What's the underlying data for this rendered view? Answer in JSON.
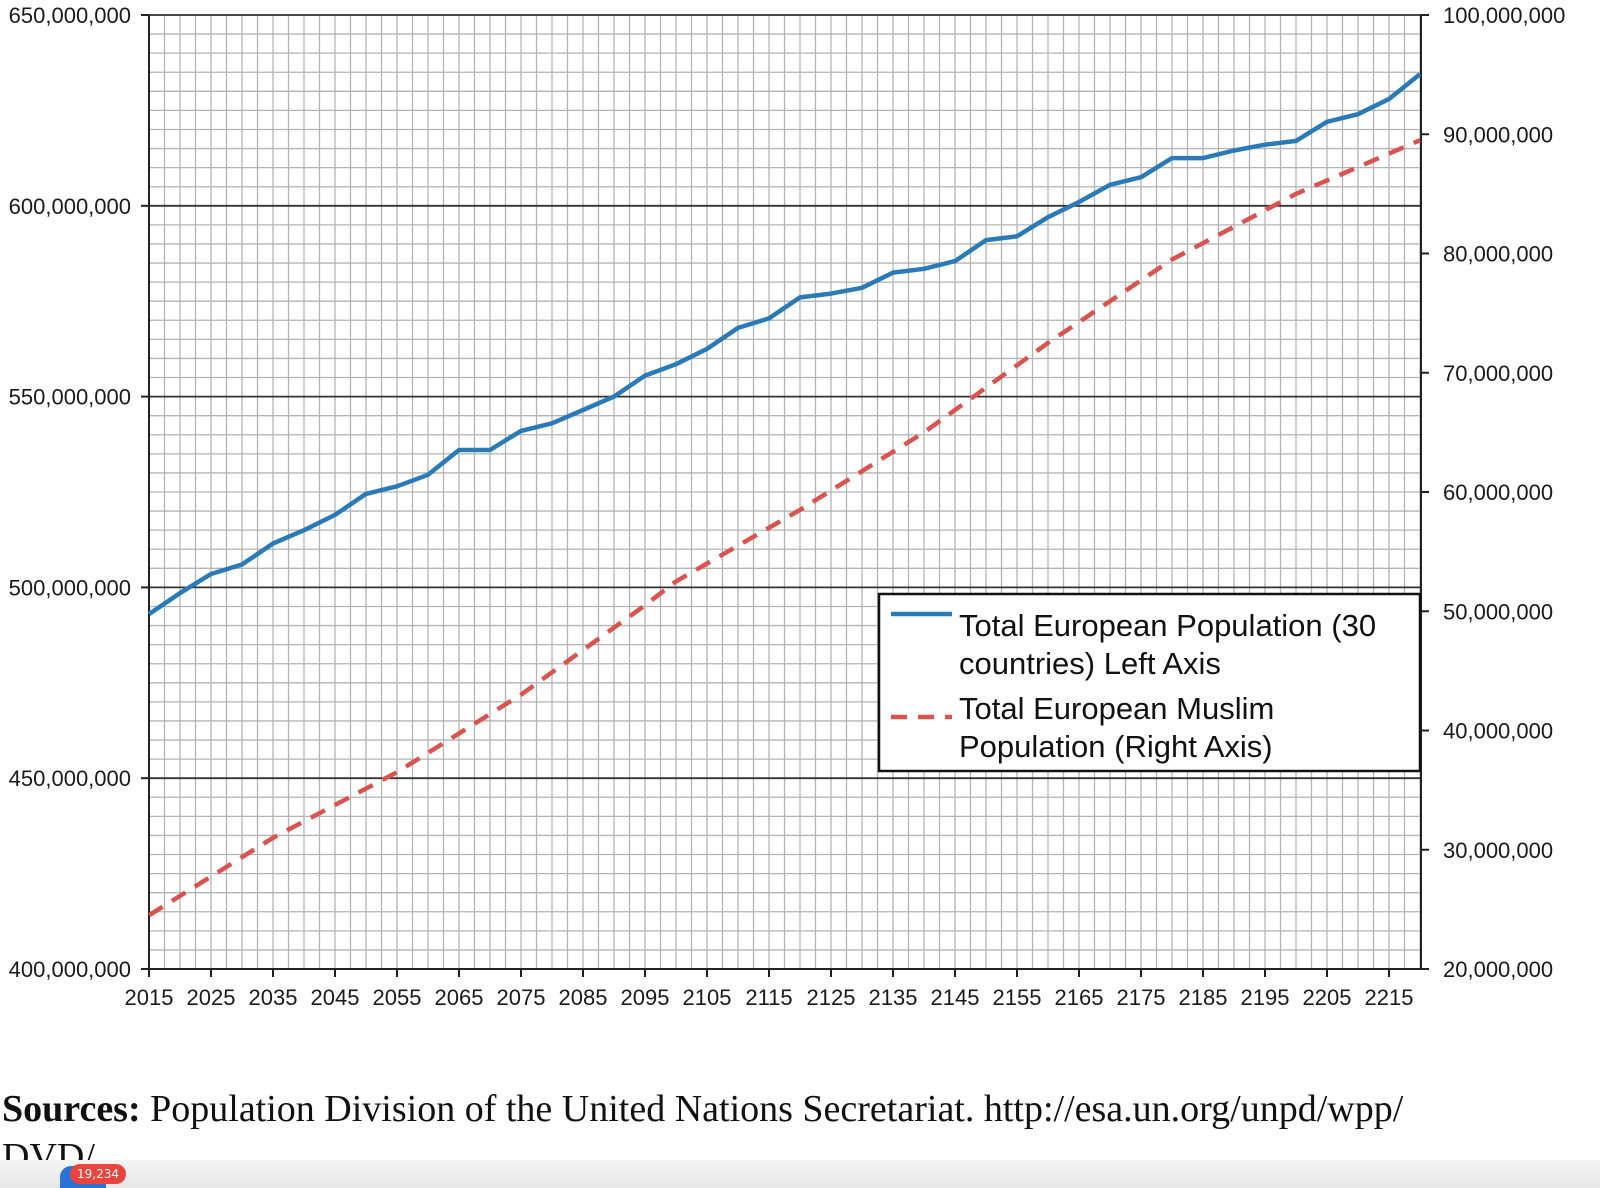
{
  "chart_data": {
    "type": "line",
    "x_ticks": [
      2015,
      2025,
      2035,
      2045,
      2055,
      2065,
      2075,
      2085,
      2095,
      2105,
      2115,
      2125,
      2135,
      2145,
      2155,
      2165,
      2175,
      2185,
      2195,
      2205,
      2215
    ],
    "left_axis": {
      "range": [
        400000000,
        650000000
      ],
      "ticks": [
        "400,000,000",
        "450,000,000",
        "500,000,000",
        "550,000,000",
        "600,000,000",
        "650,000,000"
      ],
      "tick_values": [
        400000000,
        450000000,
        500000000,
        550000000,
        600000000,
        650000000
      ]
    },
    "right_axis": {
      "range": [
        20000000,
        100000000
      ],
      "ticks": [
        "20,000,000",
        "30,000,000",
        "40,000,000",
        "50,000,000",
        "60,000,000",
        "70,000,000",
        "80,000,000",
        "90,000,000",
        "100,000,000"
      ],
      "tick_values": [
        20000000,
        30000000,
        40000000,
        50000000,
        60000000,
        70000000,
        80000000,
        90000000,
        100000000
      ]
    },
    "grid": true,
    "legend_placement": "right-middle",
    "series": [
      {
        "name": "Total European Population (30 countries) Left Axis",
        "legend_lines": [
          "Total European Population (30",
          "countries) Left Axis"
        ],
        "axis": "left",
        "color": "#2a7ab8",
        "style": "solid",
        "x": [
          2015,
          2020,
          2025,
          2030,
          2035,
          2040,
          2045,
          2050,
          2055,
          2060,
          2065,
          2070,
          2075,
          2080,
          2085,
          2090,
          2095,
          2100,
          2105,
          2110,
          2115,
          2120,
          2125,
          2130,
          2135,
          2140,
          2145,
          2150,
          2155,
          2160,
          2165,
          2170,
          2175,
          2180,
          2185,
          2190,
          2195,
          2200,
          2205,
          2210,
          2215,
          2220
        ],
        "values": [
          493000000,
          498500000,
          503500000,
          506000000,
          511500000,
          515000000,
          519000000,
          524500000,
          526500000,
          529500000,
          536000000,
          536000000,
          541000000,
          543000000,
          546500000,
          550000000,
          555500000,
          558500000,
          562500000,
          568000000,
          570500000,
          576000000,
          577000000,
          578500000,
          582500000,
          583500000,
          585500000,
          591000000,
          592000000,
          597000000,
          601000000,
          605500000,
          607500000,
          612500000,
          612500000,
          614500000,
          616000000,
          617000000,
          622000000,
          624000000,
          628000000,
          634500000
        ]
      },
      {
        "name": "Total European Muslim Population (Right Axis)",
        "legend_lines": [
          "Total European Muslim",
          "Population (Right Axis)"
        ],
        "axis": "right",
        "color": "#d9534f",
        "style": "dashed",
        "x": [
          2015,
          2035,
          2055,
          2075,
          2095,
          2100,
          2120,
          2140,
          2160,
          2180,
          2200,
          2220
        ],
        "values": [
          24500000,
          31000000,
          36500000,
          43000000,
          50500000,
          52500000,
          58500000,
          65000000,
          72500000,
          79500000,
          85000000,
          89500000
        ]
      }
    ]
  },
  "source": {
    "label": "Sources:",
    "text": " Population Division of the United Nations Secretariat. http://esa.un.org/unpd/wpp/",
    "text2": "DVD/"
  },
  "notification": {
    "badge_count": "19,234"
  }
}
